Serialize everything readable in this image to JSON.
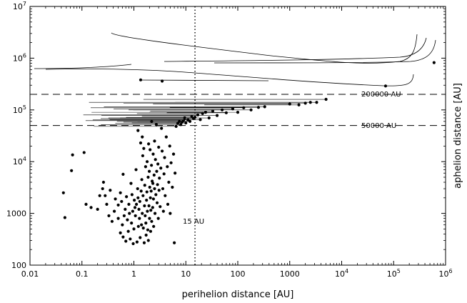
{
  "chart_data": {
    "type": "scatter",
    "title": "",
    "xlabel": "perihelion distance [AU]",
    "ylabel": "aphelion distance [AU]",
    "x_scale": "log",
    "y_scale": "log",
    "xlim": [
      0.01,
      1000000
    ],
    "ylim": [
      100,
      10000000
    ],
    "x_ticks": [
      {
        "value": 0.01,
        "label": "0.01"
      },
      {
        "value": 0.1,
        "label": "0.1"
      },
      {
        "value": 1,
        "label": "1"
      },
      {
        "value": 10,
        "label": "10"
      },
      {
        "value": 100,
        "label": "100"
      },
      {
        "value": 1000,
        "label": "1000"
      },
      {
        "value": 10000,
        "label": "10",
        "exponent": "4"
      },
      {
        "value": 100000,
        "label": "10",
        "exponent": "5"
      },
      {
        "value": 1000000,
        "label": "10",
        "exponent": "6"
      }
    ],
    "y_ticks": [
      {
        "value": 100,
        "label": "100"
      },
      {
        "value": 1000,
        "label": "1000"
      },
      {
        "value": 10000,
        "label": "10",
        "exponent": "4"
      },
      {
        "value": 100000,
        "label": "10",
        "exponent": "5"
      },
      {
        "value": 1000000,
        "label": "10",
        "exponent": "6"
      },
      {
        "value": 10000000,
        "label": "10",
        "exponent": "7"
      }
    ],
    "reference_lines": [
      {
        "orientation": "horizontal",
        "value": 200000,
        "style": "dashed",
        "label": "200000 AU"
      },
      {
        "orientation": "horizontal",
        "value": 50000,
        "style": "dashed",
        "label": "50000 AU"
      },
      {
        "orientation": "vertical",
        "value": 15,
        "style": "dotted",
        "label": "15 AU"
      }
    ],
    "points": [
      [
        0.044,
        2500
      ],
      [
        0.047,
        830
      ],
      [
        0.063,
        6700
      ],
      [
        0.066,
        13500
      ],
      [
        0.11,
        15000
      ],
      [
        0.12,
        1500
      ],
      [
        0.15,
        1300
      ],
      [
        0.2,
        1200
      ],
      [
        0.22,
        2200
      ],
      [
        0.25,
        3000
      ],
      [
        0.26,
        4000
      ],
      [
        0.28,
        2200
      ],
      [
        0.3,
        1500
      ],
      [
        0.33,
        900
      ],
      [
        0.35,
        2800
      ],
      [
        0.38,
        700
      ],
      [
        0.42,
        1100
      ],
      [
        0.44,
        1900
      ],
      [
        0.5,
        1450
      ],
      [
        0.5,
        800
      ],
      [
        0.55,
        2500
      ],
      [
        0.55,
        420
      ],
      [
        0.58,
        1700
      ],
      [
        0.6,
        600
      ],
      [
        0.62,
        5700
      ],
      [
        0.62,
        350
      ],
      [
        0.65,
        900
      ],
      [
        0.68,
        1200
      ],
      [
        0.7,
        290
      ],
      [
        0.72,
        2100
      ],
      [
        0.75,
        750
      ],
      [
        0.78,
        450
      ],
      [
        0.8,
        1500
      ],
      [
        0.82,
        1000
      ],
      [
        0.85,
        320
      ],
      [
        0.88,
        3800
      ],
      [
        0.9,
        650
      ],
      [
        0.92,
        2300
      ],
      [
        0.95,
        1100
      ],
      [
        0.97,
        260
      ],
      [
        1.0,
        500
      ],
      [
        1.02,
        1800
      ],
      [
        1.05,
        1300
      ],
      [
        1.07,
        900
      ],
      [
        1.1,
        7000
      ],
      [
        1.12,
        1500
      ],
      [
        1.15,
        280
      ],
      [
        1.18,
        3000
      ],
      [
        1.2,
        40000
      ],
      [
        1.2,
        2000
      ],
      [
        1.22,
        560
      ],
      [
        1.25,
        1200
      ],
      [
        1.28,
        800
      ],
      [
        1.3,
        1700
      ],
      [
        1.32,
        340
      ],
      [
        1.35,
        23000
      ],
      [
        1.38,
        2700
      ],
      [
        1.4,
        600
      ],
      [
        1.42,
        4500
      ],
      [
        1.45,
        30000
      ],
      [
        1.45,
        1000
      ],
      [
        1.48,
        13000
      ],
      [
        1.5,
        2200
      ],
      [
        1.52,
        520
      ],
      [
        1.55,
        18000
      ],
      [
        1.58,
        270
      ],
      [
        1.6,
        1400
      ],
      [
        1.62,
        3500
      ],
      [
        1.65,
        900
      ],
      [
        1.68,
        8000
      ],
      [
        1.7,
        650
      ],
      [
        1.72,
        380
      ],
      [
        1.75,
        1800
      ],
      [
        1.78,
        2600
      ],
      [
        1.8,
        10000
      ],
      [
        1.82,
        1100
      ],
      [
        1.85,
        480
      ],
      [
        1.88,
        5000
      ],
      [
        1.9,
        300
      ],
      [
        1.92,
        22000
      ],
      [
        1.95,
        1400
      ],
      [
        1.98,
        6500
      ],
      [
        2.0,
        800
      ],
      [
        2.02,
        3200
      ],
      [
        2.05,
        17000
      ],
      [
        2.08,
        2000
      ],
      [
        2.1,
        450
      ],
      [
        2.12,
        1150
      ],
      [
        2.15,
        2700
      ],
      [
        2.18,
        8500
      ],
      [
        2.2,
        60000
      ],
      [
        2.2,
        700
      ],
      [
        2.25,
        4200
      ],
      [
        2.3,
        1300
      ],
      [
        2.32,
        3800
      ],
      [
        2.35,
        14000
      ],
      [
        2.38,
        1900
      ],
      [
        2.4,
        560
      ],
      [
        2.45,
        5500
      ],
      [
        2.5,
        25000
      ],
      [
        2.5,
        3000
      ],
      [
        2.55,
        1000
      ],
      [
        2.6,
        11000
      ],
      [
        2.65,
        2300
      ],
      [
        2.7,
        52000
      ],
      [
        2.75,
        6500
      ],
      [
        2.8,
        1600
      ],
      [
        2.85,
        3600
      ],
      [
        2.9,
        9000
      ],
      [
        2.95,
        800
      ],
      [
        3.0,
        19000
      ],
      [
        3.05,
        2800
      ],
      [
        3.1,
        4800
      ],
      [
        3.2,
        1350
      ],
      [
        3.3,
        7500
      ],
      [
        3.4,
        44000
      ],
      [
        3.5,
        16000
      ],
      [
        3.6,
        3000
      ],
      [
        3.7,
        1100
      ],
      [
        3.8,
        5800
      ],
      [
        3.9,
        12000
      ],
      [
        4.0,
        2200
      ],
      [
        4.2,
        30000
      ],
      [
        4.4,
        8000
      ],
      [
        4.5,
        1500
      ],
      [
        4.7,
        4000
      ],
      [
        4.9,
        20000
      ],
      [
        5.0,
        1000
      ],
      [
        5.2,
        9500
      ],
      [
        5.5,
        3200
      ],
      [
        5.8,
        14000
      ],
      [
        6.0,
        270
      ],
      [
        6.2,
        6000
      ],
      [
        6.5,
        48000
      ],
      [
        7.0,
        55000
      ],
      [
        7.5,
        60000
      ],
      [
        8.0,
        52000
      ],
      [
        8.5,
        58000
      ],
      [
        9.0,
        62000
      ],
      [
        9.5,
        70000
      ],
      [
        10.0,
        56000
      ],
      [
        11.0,
        64000
      ],
      [
        12.0,
        60000
      ],
      [
        13.0,
        75000
      ],
      [
        14.0,
        68000
      ],
      [
        15.0,
        72000
      ],
      [
        17.0,
        80000
      ],
      [
        19.0,
        65000
      ],
      [
        21.0,
        85000
      ],
      [
        24.0,
        90000
      ],
      [
        28.0,
        70000
      ],
      [
        33.0,
        95000
      ],
      [
        40.0,
        78000
      ],
      [
        50.0,
        100000
      ],
      [
        60.0,
        88000
      ],
      [
        80.0,
        105000
      ],
      [
        100.0,
        90000
      ],
      [
        130.0,
        110000
      ],
      [
        180.0,
        100000
      ],
      [
        250.0,
        112000
      ],
      [
        330.0,
        115000
      ],
      [
        1000.0,
        130000
      ],
      [
        1500.0,
        125000
      ],
      [
        2000.0,
        135000
      ],
      [
        2500.0,
        140000
      ],
      [
        3300.0,
        140000
      ],
      [
        5000.0,
        160000
      ],
      [
        1.35,
        380000
      ],
      [
        3.5,
        360000
      ],
      [
        70000.0,
        290000
      ],
      [
        600000.0,
        820000
      ]
    ]
  }
}
